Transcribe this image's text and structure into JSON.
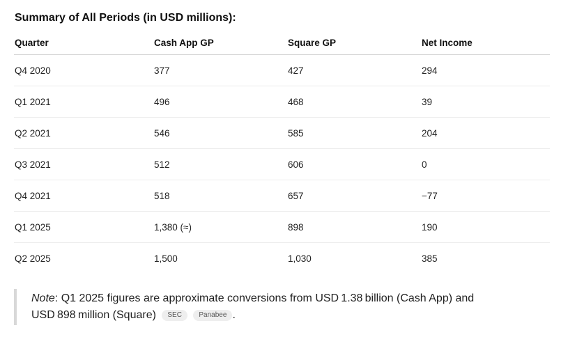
{
  "heading": "Summary of All Periods (in USD millions):",
  "table": {
    "headers": [
      "Quarter",
      "Cash App GP",
      "Square GP",
      "Net Income"
    ],
    "rows": [
      [
        "Q4 2020",
        "377",
        "427",
        "294"
      ],
      [
        "Q1 2021",
        "496",
        "468",
        "39"
      ],
      [
        "Q2 2021",
        "546",
        "585",
        "204"
      ],
      [
        "Q3 2021",
        "512",
        "606",
        "0"
      ],
      [
        "Q4 2021",
        "518",
        "657",
        "−77"
      ],
      [
        "Q1 2025",
        "1,380 (≈)",
        "898",
        "190"
      ],
      [
        "Q2 2025",
        "1,500",
        "1,030",
        "385"
      ]
    ]
  },
  "note": {
    "label": "Note",
    "text": ": Q1 2025 figures are approximate conversions from USD 1.38 billion (Cash App) and USD 898 million (Square)",
    "sources": [
      "SEC",
      "Panabee"
    ],
    "end": "."
  }
}
